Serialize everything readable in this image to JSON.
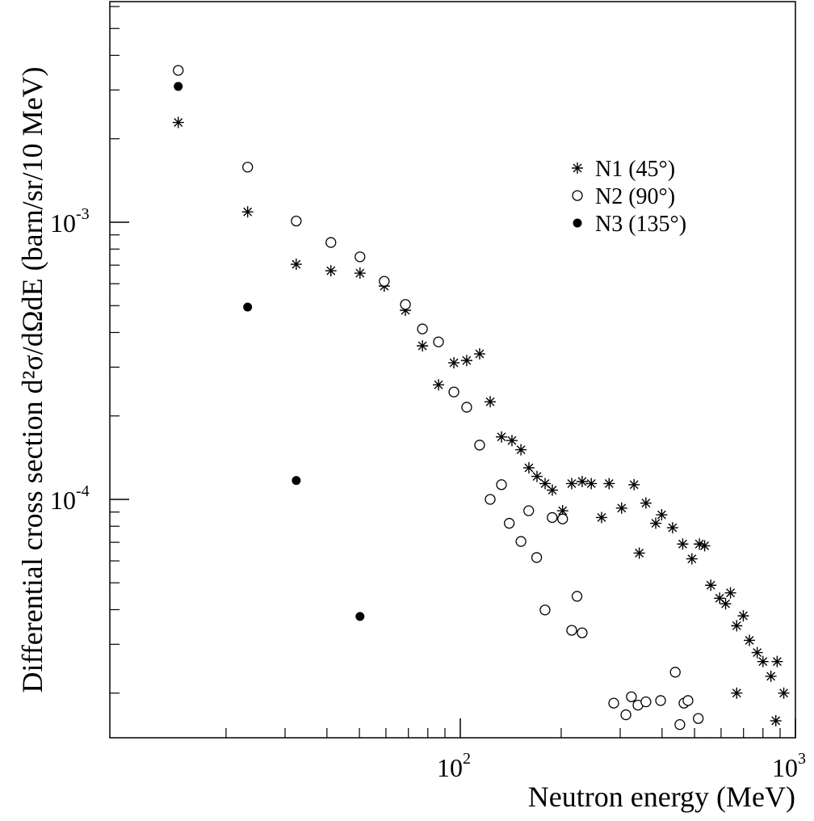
{
  "chart_data": {
    "type": "scatter",
    "xlabel": "Neutron energy (MeV)",
    "ylabel": "Differential cross section d²σ/dΩdE (barn/sr/10 MeV)",
    "xscale": "log",
    "yscale": "log",
    "xlim": [
      9.0,
      1000
    ],
    "ylim": [
      1.38e-05,
      0.00625
    ],
    "xticks": [
      {
        "value": 100,
        "label": "10",
        "sup": "2"
      },
      {
        "value": 1000,
        "label": "10",
        "sup": "3"
      }
    ],
    "yticks": [
      {
        "value": 0.0001,
        "label": "10",
        "sup": "-4"
      },
      {
        "value": 0.001,
        "label": "10",
        "sup": "-3"
      }
    ],
    "minor_xticks": [
      20,
      30,
      40,
      50,
      60,
      70,
      80,
      90,
      200,
      300,
      400,
      500,
      600,
      700,
      800,
      900
    ],
    "minor_yticks": [
      2e-05,
      3e-05,
      4e-05,
      5e-05,
      6e-05,
      7e-05,
      8e-05,
      9e-05,
      0.0002,
      0.0003,
      0.0004,
      0.0005,
      0.0006,
      0.0007,
      0.0008,
      0.0009,
      0.002,
      0.003,
      0.004,
      0.005,
      0.006
    ],
    "legend": "upper right",
    "series": [
      {
        "name": "N1 (45°)",
        "marker": "asterisk",
        "color": "#000000",
        "x": [
          14.4,
          23.2,
          32.4,
          41.1,
          50.2,
          59.3,
          68.6,
          77.1,
          86.1,
          95.7,
          104.5,
          114.2,
          122.8,
          132.7,
          142.6,
          151.7,
          160.2,
          169.4,
          179.1,
          188.2,
          202,
          215,
          231,
          246,
          264,
          278,
          303,
          330,
          342,
          358,
          383,
          399,
          430,
          461,
          491,
          517,
          536,
          559,
          594,
          619,
          640,
          668,
          699,
          729,
          769,
          800,
          845,
          882,
          923,
          874,
          668
        ],
        "values": [
          0.00229,
          0.00109,
          0.000705,
          0.000668,
          0.000655,
          0.000588,
          0.000481,
          0.000358,
          0.000259,
          0.000311,
          0.000317,
          0.000335,
          0.000225,
          0.000168,
          0.000163,
          0.000151,
          0.00013,
          0.000121,
          0.000114,
          0.000108,
          9.1e-05,
          0.000114,
          0.000116,
          0.000114,
          8.6e-05,
          0.000114,
          9.3e-05,
          0.000113,
          6.4e-05,
          9.7e-05,
          8.2e-05,
          8.8e-05,
          7.9e-05,
          6.9e-05,
          6.1e-05,
          6.9e-05,
          6.8e-05,
          4.9e-05,
          4.4e-05,
          4.2e-05,
          4.6e-05,
          3.5e-05,
          3.8e-05,
          3.1e-05,
          2.8e-05,
          2.6e-05,
          2.3e-05,
          2.6e-05,
          2e-05,
          1.59e-05,
          2e-05
        ]
      },
      {
        "name": "N2 (90°)",
        "marker": "open-circle",
        "color": "#000000",
        "x": [
          14.4,
          23.2,
          32.4,
          41.1,
          50.2,
          59.3,
          68.6,
          77.1,
          86.1,
          95.7,
          104.5,
          114.2,
          122.8,
          132.7,
          140,
          151.7,
          160,
          169,
          179,
          188,
          202,
          215,
          223,
          231,
          287,
          312,
          324,
          339,
          358,
          396,
          438,
          452,
          465,
          478,
          513
        ],
        "values": [
          0.00353,
          0.00158,
          0.00101,
          0.000845,
          0.00075,
          0.000612,
          0.000505,
          0.000412,
          0.00037,
          0.000244,
          0.000215,
          0.000157,
          0.0001,
          0.000113,
          8.2e-05,
          7.05e-05,
          9.1e-05,
          6.17e-05,
          3.99e-05,
          8.6e-05,
          8.5e-05,
          3.37e-05,
          4.47e-05,
          3.3e-05,
          1.84e-05,
          1.67e-05,
          1.94e-05,
          1.81e-05,
          1.86e-05,
          1.88e-05,
          2.38e-05,
          1.54e-05,
          1.84e-05,
          1.88e-05,
          1.62e-05
        ]
      },
      {
        "name": "N3 (135°)",
        "marker": "filled-circle",
        "color": "#000000",
        "x": [
          14.4,
          23.2,
          32.4,
          50.2
        ],
        "values": [
          0.00309,
          0.000494,
          0.000117,
          3.78e-05
        ]
      }
    ]
  }
}
